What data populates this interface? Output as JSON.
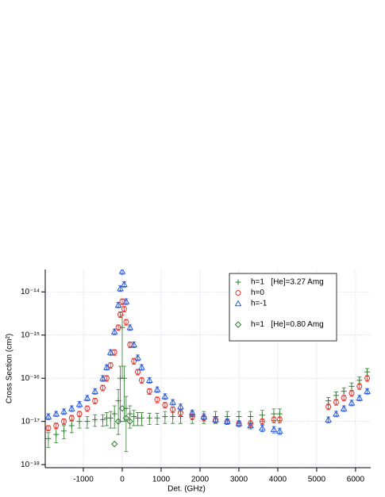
{
  "chart_data": {
    "type": "scatter",
    "xlabel": "Det. (GHz)",
    "ylabel": "Cross Section (cm²)",
    "log_y": true,
    "grid": true,
    "legend": "upper right",
    "xlim": [
      -1980,
      6390
    ],
    "ylim": [
      8.5e-19,
      3.3e-14
    ],
    "xticks": [
      -1000,
      0,
      1000,
      2000,
      3000,
      4000,
      5000,
      6000
    ],
    "yticks": [
      {
        "value": 1e-18,
        "label": "10⁻¹⁸"
      },
      {
        "value": 1e-17,
        "label": "10⁻¹⁷"
      },
      {
        "value": 1e-16,
        "label": "10⁻¹⁶"
      },
      {
        "value": 1e-15,
        "label": "10⁻¹⁵"
      },
      {
        "value": 1e-14,
        "label": "10⁻¹⁴"
      }
    ],
    "series": [
      {
        "name": "h=1   [He]=3.27 Amg",
        "color": "#2e7d2e",
        "marker": "plus",
        "x": [
          -1900,
          -1700,
          -1500,
          -1300,
          -1100,
          -900,
          -700,
          -500,
          -400,
          -300,
          -200,
          -100,
          -50,
          0,
          50,
          100,
          200,
          300,
          400,
          500,
          700,
          900,
          1100,
          1300,
          1500,
          1800,
          2100,
          2400,
          2700,
          3000,
          3300,
          3600,
          3900,
          4050,
          5300,
          5500,
          5700,
          5900,
          6100,
          6300
        ],
        "values": [
          4e-18,
          5e-18,
          6e-18,
          8e-18,
          1e-17,
          1e-17,
          1.1e-17,
          1.1e-17,
          1.2e-17,
          1.2e-17,
          1.5e-17,
          3e-17,
          1e-16,
          1.5e-15,
          1e-16,
          2e-17,
          1.5e-17,
          1.3e-17,
          1.2e-17,
          1.2e-17,
          1.2e-17,
          1.2e-17,
          1.3e-17,
          1.3e-17,
          1.3e-17,
          1.3e-17,
          1.3e-17,
          1.3e-17,
          1.3e-17,
          1.3e-17,
          1.3e-17,
          1.4e-17,
          1.5e-17,
          1.5e-17,
          3e-17,
          4e-17,
          5e-17,
          6.5e-17,
          9e-17,
          1.4e-16
        ],
        "errors": [
          1.5e-18,
          1.8e-18,
          2e-18,
          2.5e-18,
          3e-18,
          3e-18,
          3.3e-18,
          3.3e-18,
          4e-18,
          5e-18,
          8e-18,
          2.5e-17,
          9e-17,
          1.4e-15,
          9e-17,
          1.8e-17,
          8e-18,
          5e-18,
          4e-18,
          4e-18,
          3.5e-18,
          3.5e-18,
          4e-18,
          4e-18,
          4e-18,
          4e-18,
          4e-18,
          4e-18,
          4e-18,
          4e-18,
          4e-18,
          4e-18,
          4.5e-18,
          4.5e-18,
          6e-18,
          8e-18,
          1e-17,
          1.3e-17,
          1.8e-17,
          2.8e-17
        ]
      },
      {
        "name": "h=0",
        "color": "#e8302a",
        "marker": "circle",
        "x": [
          -1900,
          -1700,
          -1500,
          -1300,
          -1100,
          -900,
          -700,
          -500,
          -400,
          -300,
          -200,
          -100,
          -50,
          0,
          50,
          100,
          200,
          300,
          400,
          500,
          700,
          900,
          1100,
          1300,
          1500,
          1800,
          2100,
          2400,
          2700,
          3000,
          3300,
          3600,
          3900,
          4050,
          5300,
          5500,
          5700,
          5900,
          6100,
          6300
        ],
        "values": [
          7e-18,
          8e-18,
          1e-17,
          1.2e-17,
          1.5e-17,
          2e-17,
          3e-17,
          6e-17,
          1e-16,
          2e-16,
          4e-16,
          1.5e-15,
          3e-15,
          6e-15,
          4e-15,
          2e-15,
          6e-16,
          2.5e-16,
          1.4e-16,
          9e-17,
          5e-17,
          3.2e-17,
          2.4e-17,
          1.9e-17,
          1.6e-17,
          1.3e-17,
          1.2e-17,
          1.1e-17,
          1e-17,
          9e-18,
          9e-18,
          1e-17,
          1.1e-17,
          1.1e-17,
          2.2e-17,
          2.8e-17,
          3.5e-17,
          4.5e-17,
          6.5e-17,
          1e-16
        ],
        "errors": [
          1e-18,
          1.2e-18,
          1.5e-18,
          1.8e-18,
          2.2e-18,
          3e-18,
          4.5e-18,
          9e-18,
          1.5e-17,
          3e-17,
          6e-17,
          2.2e-16,
          4.5e-16,
          9e-16,
          6e-16,
          3e-16,
          9e-17,
          3.8e-17,
          2.1e-17,
          1.4e-17,
          7.5e-18,
          5e-18,
          3.6e-18,
          2.9e-18,
          2.4e-18,
          2e-18,
          1.8e-18,
          1.7e-18,
          1.5e-18,
          1.4e-18,
          1.4e-18,
          1.5e-18,
          1.7e-18,
          1.7e-18,
          3.3e-18,
          4.2e-18,
          5.2e-18,
          6.8e-18,
          1e-17,
          1.5e-17
        ]
      },
      {
        "name": "h=-1",
        "color": "#2a5ad8",
        "marker": "triangle",
        "x": [
          -1900,
          -1700,
          -1500,
          -1300,
          -1100,
          -900,
          -700,
          -500,
          -400,
          -300,
          -200,
          -100,
          -50,
          0,
          50,
          100,
          200,
          300,
          400,
          500,
          700,
          900,
          1100,
          1300,
          1500,
          1800,
          2100,
          2400,
          2700,
          3000,
          3300,
          3600,
          3900,
          4050,
          5300,
          5500,
          5700,
          5900,
          6100,
          6300
        ],
        "values": [
          1.3e-17,
          1.5e-17,
          1.7e-17,
          2e-17,
          2.5e-17,
          3.5e-17,
          5e-17,
          1e-16,
          1.8e-16,
          4e-16,
          1.2e-15,
          5e-15,
          1.2e-14,
          3e-14,
          1.5e-14,
          6e-15,
          1.5e-15,
          6e-16,
          3e-16,
          1.8e-16,
          9e-17,
          5.5e-17,
          3.8e-17,
          2.8e-17,
          2.2e-17,
          1.6e-17,
          1.3e-17,
          1.1e-17,
          1e-17,
          9e-18,
          8e-18,
          7e-18,
          6.5e-18,
          6e-18,
          1.1e-17,
          1.5e-17,
          2e-17,
          2.7e-17,
          3.5e-17,
          5e-17
        ],
        "errors": [
          2e-18,
          2e-18,
          2.5e-18,
          3e-18,
          4e-18,
          5e-18,
          7e-18,
          1.5e-17,
          2.5e-17,
          6e-17,
          1.8e-16,
          7e-16,
          1.8e-15,
          4.5e-15,
          2.2e-15,
          9e-16,
          2.2e-16,
          9e-17,
          4.5e-17,
          2.7e-17,
          1.3e-17,
          8e-18,
          5.5e-18,
          4e-18,
          3.3e-18,
          2.4e-18,
          2e-18,
          1.7e-18,
          1.5e-18,
          1.4e-18,
          1.3e-18,
          1.2e-18,
          1.1e-18,
          1e-18,
          1.7e-18,
          2.2e-18,
          3e-18,
          4e-18,
          5e-18,
          7e-18
        ]
      },
      {
        "name": "h=1   [He]=0.80 Amg",
        "color": "#2e7d2e",
        "marker": "diamond",
        "x": [
          -200,
          -100,
          0,
          100,
          200
        ],
        "values": [
          3e-18,
          1e-17,
          2e-17,
          1.2e-17,
          1e-17
        ]
      }
    ]
  }
}
